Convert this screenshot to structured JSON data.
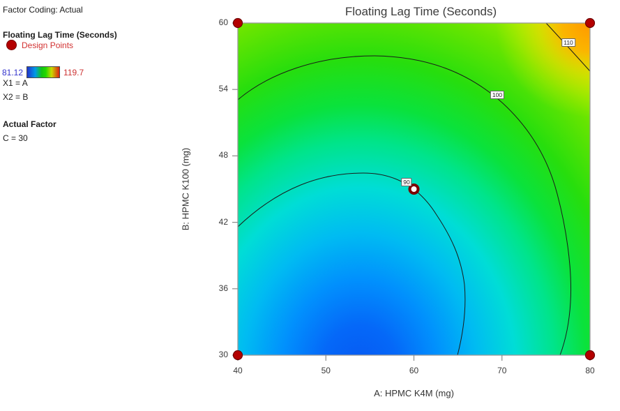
{
  "sidebar": {
    "factor_coding": "Factor Coding: Actual",
    "response_title": "Floating Lag Time (Seconds)",
    "design_points_label": "Design Points",
    "scale_min": "81.12",
    "scale_max": "119.7",
    "x1_label": "X1 = A",
    "x2_label": "X2 = B",
    "actual_factor_heading": "Actual Factor",
    "actual_factor_value": "C = 30"
  },
  "colors": {
    "design_point_fill": "#b40000",
    "design_point_ring": "#6e0000",
    "center_point_ring": "#7a0000",
    "scale_min_text": "#3333cc",
    "scale_max_text": "#cc3333",
    "design_points_text": "#d23232",
    "frame_gray": "#9a9a9a",
    "contour_line": "#1a1a1a",
    "field_blue_min": "#0658f2",
    "field_orange_max": "#ff9800"
  },
  "chart_data": {
    "type": "heatmap",
    "subtype": "response-surface-contour",
    "title": "Floating Lag Time (Seconds)",
    "xlabel": "A: HPMC K4M (mg)",
    "ylabel": "B: HPMC K100 (mg)",
    "xlim": [
      40,
      80
    ],
    "ylim": [
      30,
      60
    ],
    "x_ticks": [
      40,
      50,
      60,
      70,
      80
    ],
    "y_ticks": [
      60,
      54,
      48,
      42,
      36,
      30
    ],
    "response_range": [
      81.12,
      119.7
    ],
    "colormap": "blue-cyan-green-yellow-orange rainbow",
    "contour_levels": [
      90,
      100,
      110
    ],
    "contour_labels": [
      "90",
      "100",
      "110"
    ],
    "design_points": [
      {
        "A": 40,
        "B": 60,
        "style": "corner"
      },
      {
        "A": 80,
        "B": 60,
        "style": "corner"
      },
      {
        "A": 40,
        "B": 30,
        "style": "corner"
      },
      {
        "A": 80,
        "B": 30,
        "style": "corner"
      },
      {
        "A": 60,
        "B": 45,
        "style": "center-open"
      }
    ],
    "min_region_approx": {
      "A": 53,
      "B": 30
    },
    "max_region": "top-right corner (A=80, B=60)",
    "actual_factor": {
      "name": "C",
      "value": 30
    },
    "legend_position": "left",
    "grid": false
  }
}
